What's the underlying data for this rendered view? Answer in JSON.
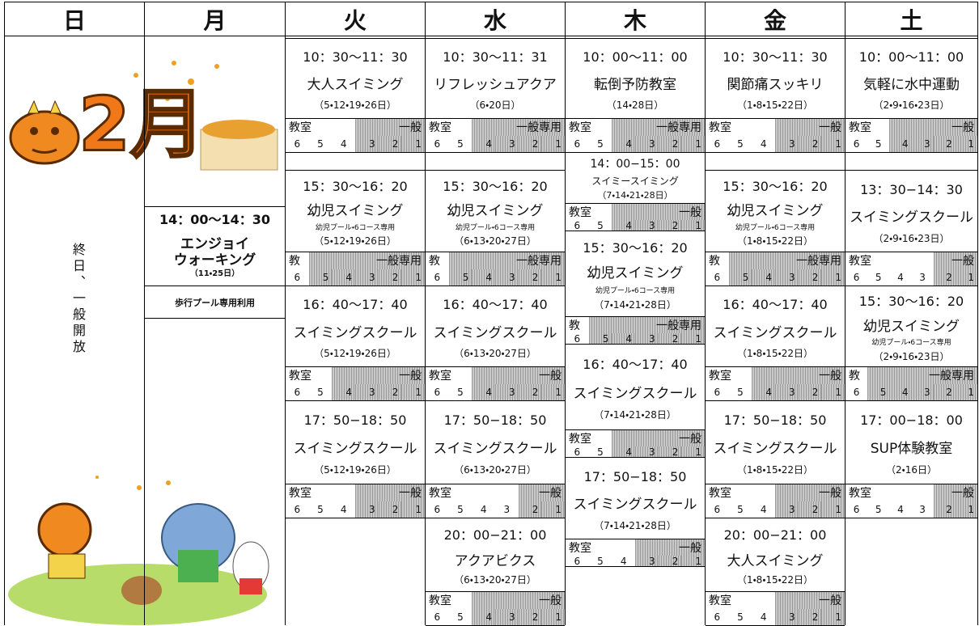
{
  "header": {
    "days": [
      "日",
      "月",
      "火",
      "水",
      "木",
      "金",
      "土"
    ]
  },
  "sunday": {
    "month": "2月",
    "note": "終日、一般開放"
  },
  "monday": {
    "time": "14：00〜14：30",
    "name_lines": [
      "エンジョイ",
      "ウォーキング"
    ],
    "dates": "（11・25日）",
    "note": "歩行プール専用利用"
  },
  "columns": [
    {
      "sessions": [
        {
          "time": "10：30〜11：30",
          "name": "大人スイミング",
          "dates": "（5・12・19・26日）",
          "classroom_label": "教室",
          "general_label": "一般",
          "classroom_lanes": [
            6,
            5,
            4
          ],
          "general_lanes": [
            3,
            2,
            1
          ]
        },
        {
          "time": "15：30〜16：20",
          "name": "幼児スイミング",
          "note": "幼児プール・6コース専用",
          "dates": "（5・12・19・26日）",
          "classroom_label": "教",
          "general_label": "一般専用",
          "classroom_lanes": [
            6
          ],
          "general_lanes": [
            5,
            4,
            3,
            2,
            1
          ]
        },
        {
          "time": "16：40〜17：40",
          "name": "スイミングスクール",
          "dates": "（5・12・19・26日）",
          "classroom_label": "教室",
          "general_label": "一般",
          "classroom_lanes": [
            6,
            5
          ],
          "general_lanes": [
            4,
            3,
            2,
            1
          ]
        },
        {
          "time": "17：50−18：50",
          "name": "スイミングスクール",
          "dates": "（5・12・19・26日）",
          "classroom_label": "教室",
          "general_label": "一般",
          "classroom_lanes": [
            6,
            5,
            4
          ],
          "general_lanes": [
            3,
            2,
            1
          ]
        }
      ]
    },
    {
      "sessions": [
        {
          "time": "10：30〜11：31",
          "name": "リフレッシュアクア",
          "dates": "（6・20日）",
          "classroom_label": "教室",
          "general_label": "一般専用",
          "classroom_lanes": [
            6,
            5
          ],
          "general_lanes": [
            4,
            3,
            2,
            1
          ]
        },
        {
          "time": "15：30〜16：20",
          "name": "幼児スイミング",
          "note": "幼児プール・6コース専用",
          "dates": "（6・13・20・27日）",
          "classroom_label": "教",
          "general_label": "一般専用",
          "classroom_lanes": [
            6
          ],
          "general_lanes": [
            5,
            4,
            3,
            2,
            1
          ]
        },
        {
          "time": "16：40〜17：40",
          "name": "スイミングスクール",
          "dates": "（6・13・20・27日）",
          "classroom_label": "教室",
          "general_label": "一般",
          "classroom_lanes": [
            6,
            5
          ],
          "general_lanes": [
            4,
            3,
            2,
            1
          ]
        },
        {
          "time": "17：50−18：50",
          "name": "スイミングスクール",
          "dates": "（6・13・20・27日）",
          "classroom_label": "教室",
          "general_label": "一般",
          "classroom_lanes": [
            6,
            5,
            4,
            3
          ],
          "general_lanes": [
            2,
            1
          ]
        },
        {
          "time": "20：00−21：00",
          "name": "アクアビクス",
          "dates": "（6・13・20・27日）",
          "classroom_label": "教室",
          "general_label": "一般",
          "classroom_lanes": [
            6,
            5
          ],
          "general_lanes": [
            4,
            3,
            2,
            1
          ]
        }
      ]
    },
    {
      "sessions": [
        {
          "time": "10：00〜11：00",
          "name": "転倒予防教室",
          "dates": "（14・28日）",
          "classroom_label": "教室",
          "general_label": "一般専用",
          "classroom_lanes": [
            6,
            5
          ],
          "general_lanes": [
            4,
            3,
            2,
            1
          ]
        },
        {
          "time": "14：00−15：00",
          "name": "スイミースイミング",
          "dates": "（7・14・21・28日）",
          "classroom_label": "教室",
          "general_label": "一般",
          "classroom_lanes": [
            6,
            5
          ],
          "general_lanes": [
            4,
            3,
            2,
            1
          ]
        },
        {
          "time": "15：30〜16：20",
          "name": "幼児スイミング",
          "note": "幼児プール・6コース専用",
          "dates": "（7・14・21・28日）",
          "classroom_label": "教",
          "general_label": "一般専用",
          "classroom_lanes": [
            6
          ],
          "general_lanes": [
            5,
            4,
            3,
            2,
            1
          ]
        },
        {
          "time": "16：40〜17：40",
          "name": "スイミングスクール",
          "dates": "（7・14・21・28日）",
          "classroom_label": "教室",
          "general_label": "一般",
          "classroom_lanes": [
            6,
            5
          ],
          "general_lanes": [
            4,
            3,
            2,
            1
          ]
        },
        {
          "time": "17：50−18：50",
          "name": "スイミングスクール",
          "dates": "（7・14・21・28日）",
          "classroom_label": "教室",
          "general_label": "一般",
          "classroom_lanes": [
            6,
            5,
            4
          ],
          "general_lanes": [
            3,
            2,
            1
          ]
        }
      ]
    },
    {
      "sessions": [
        {
          "time": "10：30〜11：30",
          "name": "関節痛スッキリ",
          "dates": "（1・8・15・22日）",
          "classroom_label": "教室",
          "general_label": "一般",
          "classroom_lanes": [
            6,
            5,
            4
          ],
          "general_lanes": [
            3,
            2,
            1
          ]
        },
        {
          "time": "15：30〜16：20",
          "name": "幼児スイミング",
          "note": "幼児プール・6コース専用",
          "dates": "（1・8・15・22日）",
          "classroom_label": "教",
          "general_label": "一般専用",
          "classroom_lanes": [
            6
          ],
          "general_lanes": [
            5,
            4,
            3,
            2,
            1
          ]
        },
        {
          "time": "16：40〜17：40",
          "name": "スイミングスクール",
          "dates": "（1・8・15・22日）",
          "classroom_label": "教室",
          "general_label": "一般",
          "classroom_lanes": [
            6,
            5
          ],
          "general_lanes": [
            4,
            3,
            2,
            1
          ]
        },
        {
          "time": "17：50−18：50",
          "name": "スイミングスクール",
          "dates": "（1・8・15・22日）",
          "classroom_label": "教室",
          "general_label": "一般",
          "classroom_lanes": [
            6,
            5,
            4
          ],
          "general_lanes": [
            3,
            2,
            1
          ]
        },
        {
          "time": "20：00−21：00",
          "name": "大人スイミング",
          "dates": "（1・8・15・22日）",
          "classroom_label": "教室",
          "general_label": "一般",
          "classroom_lanes": [
            6,
            5,
            4
          ],
          "general_lanes": [
            3,
            2,
            1
          ]
        }
      ]
    },
    {
      "sessions": [
        {
          "time": "10：00〜11：00",
          "name": "気軽に水中運動",
          "dates": "（2・9・16・23日）",
          "classroom_label": "教室",
          "general_label": "一般",
          "classroom_lanes": [
            6,
            5
          ],
          "general_lanes": [
            4,
            3,
            2,
            1
          ]
        },
        {
          "time": "13：30−14：30",
          "name": "スイミングスクール",
          "dates": "（2・9・16・23日）",
          "classroom_label": "教室",
          "general_label": "一般",
          "classroom_lanes": [
            6,
            5,
            4,
            3
          ],
          "general_lanes": [
            2,
            1
          ]
        },
        {
          "time": "15：30〜16：20",
          "name": "幼児スイミング",
          "note": "幼児プール・6コース専用",
          "dates": "（2・9・16・23日）",
          "classroom_label": "教",
          "general_label": "一般専用",
          "classroom_lanes": [
            6
          ],
          "general_lanes": [
            5,
            4,
            3,
            2,
            1
          ]
        },
        {
          "time": "17：00−18：00",
          "name": "SUP体験教室",
          "dates": "（2・16日）",
          "classroom_label": "教室",
          "general_label": "一般",
          "classroom_lanes": [
            6,
            5,
            4,
            3
          ],
          "general_lanes": [
            2,
            1
          ]
        }
      ]
    }
  ]
}
